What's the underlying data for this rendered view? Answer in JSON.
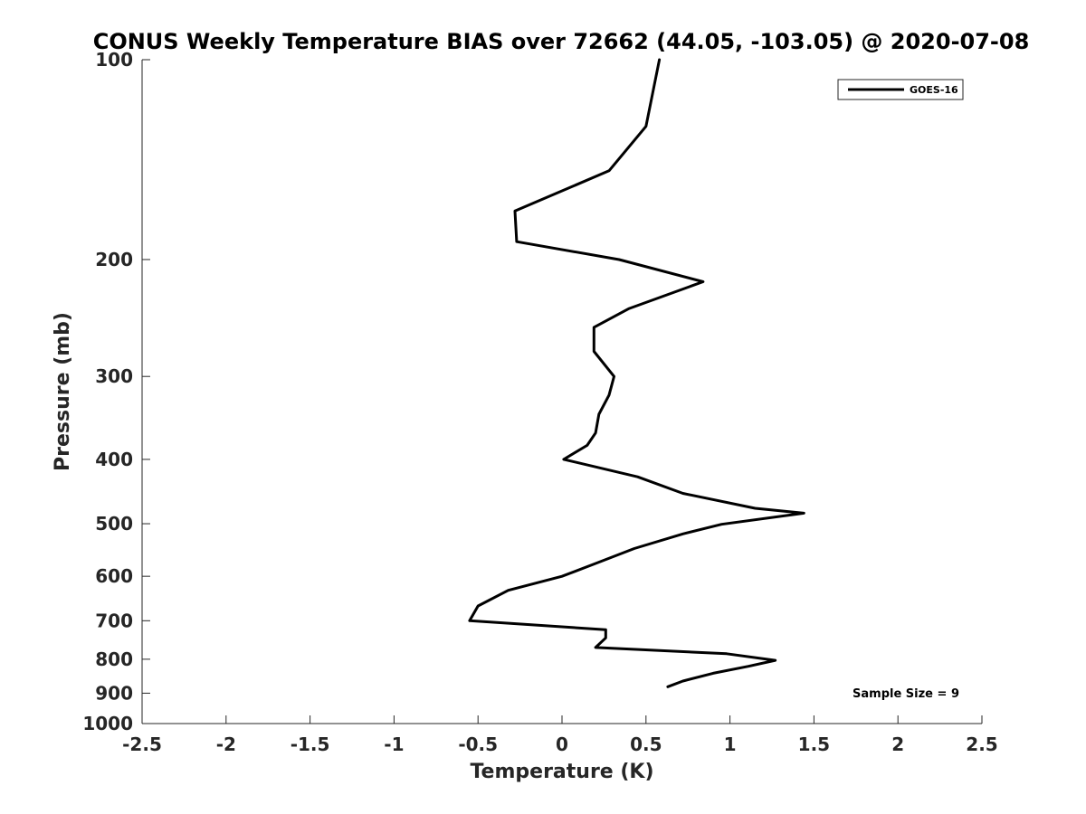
{
  "chart_data": {
    "type": "line",
    "title": "CONUS Weekly Temperature BIAS over 72662 (44.05, -103.05) @ 2020-07-08",
    "xlabel": "Temperature (K)",
    "ylabel": "Pressure (mb)",
    "xlim": [
      -2.5,
      2.5
    ],
    "ylim": [
      1000,
      100
    ],
    "yscale": "log",
    "y_reversed": true,
    "xticks": [
      "-2.5",
      "-2",
      "-1.5",
      "-1",
      "-0.5",
      "0",
      "0.5",
      "1",
      "1.5",
      "2",
      "2.5"
    ],
    "yticks": [
      "100",
      "200",
      "300",
      "400",
      "500",
      "600",
      "700",
      "800",
      "900",
      "1000"
    ],
    "grid": false,
    "legend": {
      "placement": "top-right",
      "entries": [
        "GOES-16"
      ]
    },
    "annotation": "Sample Size = 9",
    "line_color": "#000000",
    "series": [
      {
        "name": "GOES-16",
        "points": [
          [
            0.58,
            100
          ],
          [
            0.5,
            126
          ],
          [
            0.28,
            147
          ],
          [
            -0.28,
            169
          ],
          [
            -0.27,
            188
          ],
          [
            0.34,
            200
          ],
          [
            0.84,
            216
          ],
          [
            0.4,
            237
          ],
          [
            0.19,
            253
          ],
          [
            0.19,
            275
          ],
          [
            0.31,
            300
          ],
          [
            0.28,
            320
          ],
          [
            0.22,
            342
          ],
          [
            0.2,
            365
          ],
          [
            0.15,
            381
          ],
          [
            0.01,
            400
          ],
          [
            0.45,
            425
          ],
          [
            0.72,
            450
          ],
          [
            1.15,
            474
          ],
          [
            1.44,
            482
          ],
          [
            0.95,
            501
          ],
          [
            0.72,
            518
          ],
          [
            0.43,
            545
          ],
          [
            0.2,
            574
          ],
          [
            0.0,
            600
          ],
          [
            -0.32,
            630
          ],
          [
            -0.5,
            665
          ],
          [
            -0.55,
            700
          ],
          [
            0.26,
            722
          ],
          [
            0.26,
            743
          ],
          [
            0.2,
            768
          ],
          [
            0.98,
            785
          ],
          [
            1.27,
            803
          ],
          [
            1.11,
            820
          ],
          [
            0.9,
            840
          ],
          [
            0.72,
            863
          ],
          [
            0.63,
            880
          ]
        ]
      }
    ]
  }
}
